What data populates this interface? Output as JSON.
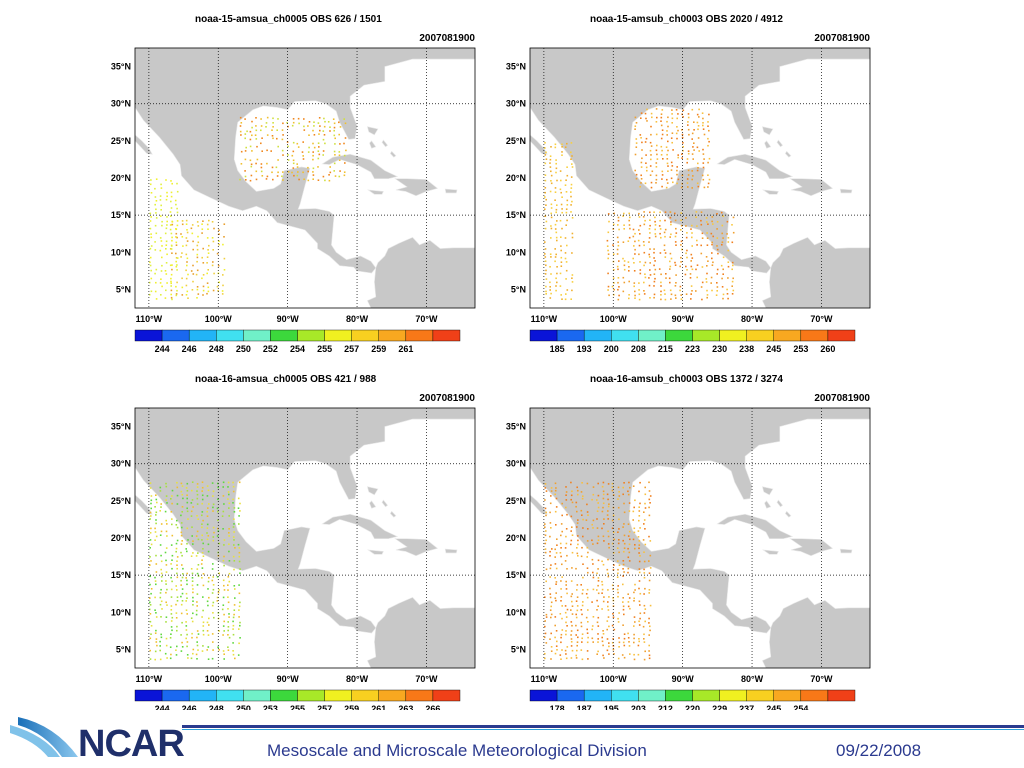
{
  "panels": [
    {
      "title": "noaa-15-amsua_ch0005  OBS  626 / 1501",
      "date": "2007081900",
      "lat_labels": [
        "35°N",
        "30°N",
        "25°N",
        "20°N",
        "15°N",
        "10°N",
        "5°N"
      ],
      "lon_labels": [
        "110°W",
        "100°W",
        "90°W",
        "80°W",
        "70°W"
      ],
      "colorbar_labels": [
        "244",
        "246",
        "248",
        "250",
        "252",
        "254",
        "255",
        "257",
        "259",
        "261"
      ],
      "colorbar_colors": [
        "#0a14d8",
        "#1a68f0",
        "#22b4f6",
        "#40e0f0",
        "#70f0c8",
        "#3cd83c",
        "#a8e828",
        "#f0f020",
        "#f8d020",
        "#f8a820",
        "#f87818",
        "#f04018"
      ],
      "swaths": [
        {
          "name": "east-gulf",
          "lon": [
            -97,
            -88,
            -85,
            -82
          ],
          "lat": [
            28.5,
            20
          ],
          "colors": [
            "#f08820",
            "#f0c030",
            "#d0e040"
          ]
        },
        {
          "name": "central",
          "lon": [
            -107,
            -99
          ],
          "lat": [
            15,
            4
          ],
          "colors": [
            "#f0d040",
            "#e8a030",
            "#f0f030"
          ]
        },
        {
          "name": "pacific-west",
          "lon": [
            -110,
            -106
          ],
          "lat": [
            20,
            4
          ],
          "colors": [
            "#f0f030",
            "#e0f040"
          ]
        }
      ]
    },
    {
      "title": "noaa-15-amsub_ch0003  OBS  2020 / 4912",
      "date": "2007081900",
      "lat_labels": [
        "35°N",
        "30°N",
        "25°N",
        "20°N",
        "15°N",
        "10°N",
        "5°N"
      ],
      "lon_labels": [
        "110°W",
        "100°W",
        "90°W",
        "80°W",
        "70°W"
      ],
      "colorbar_labels": [
        "185",
        "193",
        "200",
        "208",
        "215",
        "223",
        "230",
        "238",
        "245",
        "253",
        "260"
      ],
      "colorbar_colors": [
        "#0a14d8",
        "#1a68f0",
        "#22b4f6",
        "#40e0f0",
        "#70f0c8",
        "#3cd83c",
        "#a8e828",
        "#f0f020",
        "#f8d020",
        "#f8a820",
        "#f87818",
        "#f04018"
      ],
      "swaths": [
        {
          "name": "gulf",
          "lon": [
            -97,
            -86
          ],
          "lat": [
            30,
            19
          ],
          "colors": [
            "#f08020",
            "#f0a030",
            "#f8c040"
          ]
        },
        {
          "name": "south",
          "lon": [
            -101,
            -83
          ],
          "lat": [
            16,
            4
          ],
          "colors": [
            "#f0a030",
            "#f8c840",
            "#f08020"
          ]
        },
        {
          "name": "pacific-west",
          "lon": [
            -110,
            -106
          ],
          "lat": [
            25,
            4
          ],
          "colors": [
            "#f8d040",
            "#f0b030"
          ]
        }
      ]
    },
    {
      "title": "noaa-16-amsua_ch0005  OBS  421 / 988",
      "date": "2007081900",
      "lat_labels": [
        "35°N",
        "30°N",
        "25°N",
        "20°N",
        "15°N",
        "10°N",
        "5°N"
      ],
      "lon_labels": [
        "110°W",
        "100°W",
        "90°W",
        "80°W",
        "70°W"
      ],
      "colorbar_labels": [
        "244",
        "246",
        "248",
        "250",
        "253",
        "255",
        "257",
        "259",
        "261",
        "263",
        "266"
      ],
      "colorbar_colors": [
        "#0a14d8",
        "#1a68f0",
        "#22b4f6",
        "#40e0f0",
        "#70f0c8",
        "#3cd83c",
        "#a8e828",
        "#f0f020",
        "#f8d020",
        "#f8a820",
        "#f87818",
        "#f04018"
      ],
      "swaths": [
        {
          "name": "pacific",
          "lon": [
            -110,
            -97
          ],
          "lat": [
            28,
            4
          ],
          "colors": [
            "#e8e040",
            "#f0c030",
            "#a8e040",
            "#60d840"
          ]
        }
      ]
    },
    {
      "title": "noaa-16-amsub_ch0003  OBS  1372 / 3274",
      "date": "2007081900",
      "lat_labels": [
        "35°N",
        "30°N",
        "25°N",
        "20°N",
        "15°N",
        "10°N",
        "5°N"
      ],
      "lon_labels": [
        "110°W",
        "100°W",
        "90°W",
        "80°W",
        "70°W"
      ],
      "colorbar_labels": [
        "178",
        "187",
        "195",
        "203",
        "212",
        "220",
        "229",
        "237",
        "245",
        "254"
      ],
      "colorbar_colors": [
        "#0a14d8",
        "#1a68f0",
        "#22b4f6",
        "#40e0f0",
        "#70f0c8",
        "#3cd83c",
        "#a8e828",
        "#f0f020",
        "#f8d020",
        "#f8a820",
        "#f87818",
        "#f04018"
      ],
      "swaths": [
        {
          "name": "pacific",
          "lon": [
            -110,
            -95
          ],
          "lat": [
            28,
            4
          ],
          "colors": [
            "#f0a030",
            "#f8c040",
            "#f08020"
          ]
        }
      ]
    }
  ],
  "footer": {
    "logo_text": "NCAR",
    "division": "Mesoscale and Microscale Meteorological Division",
    "date": "09/22/2008"
  },
  "colors": {
    "land": "#c8c8c8",
    "ocean": "#ffffff",
    "footer_bar": "#2b3a8f",
    "footer_accent": "#2ea0d8"
  }
}
